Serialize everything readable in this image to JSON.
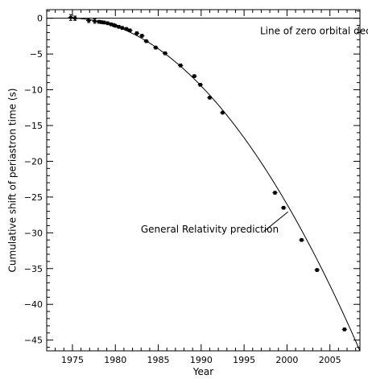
{
  "chart_data": {
    "type": "scatter",
    "xlabel": "Year",
    "ylabel": "Cumulative shift of periastron time (s)",
    "xlim": [
      1972,
      2008.5
    ],
    "ylim": [
      -46.5,
      1.2
    ],
    "x_ticks": [
      1975,
      1980,
      1985,
      1990,
      1995,
      2000,
      2005
    ],
    "y_ticks": [
      0,
      -5,
      -10,
      -15,
      -20,
      -25,
      -30,
      -35,
      -40,
      -45
    ],
    "grid": false,
    "series": [
      {
        "kind": "points",
        "x": [
          1974.8,
          1975.3,
          1976.9,
          1977.6,
          1978.1,
          1978.4,
          1978.7,
          1979.1,
          1979.5,
          1979.8,
          1980.0,
          1980.4,
          1980.8,
          1981.3,
          1981.7,
          1982.5,
          1983.1,
          1983.6,
          1984.7,
          1985.8,
          1987.6,
          1989.2,
          1989.9,
          1991.0,
          1992.5,
          1998.6,
          1999.6,
          2001.7,
          2003.5,
          2006.7
        ],
        "y": [
          0.1,
          0.0,
          -0.3,
          -0.4,
          -0.5,
          -0.55,
          -0.6,
          -0.7,
          -0.85,
          -0.95,
          -1.05,
          -1.2,
          -1.35,
          -1.5,
          -1.7,
          -2.1,
          -2.45,
          -3.2,
          -4.1,
          -4.9,
          -6.6,
          -8.1,
          -9.3,
          -11.1,
          -13.2,
          -24.4,
          -26.5,
          -31.0,
          -35.2,
          -43.5
        ],
        "yerr": [
          0.4,
          0.3,
          0.3,
          0.3,
          0.2,
          0.2,
          0.2,
          0.2,
          0.2,
          0.2,
          0.2,
          0.2,
          0.2,
          0.2,
          0.2,
          0.2,
          0.2,
          0.2,
          0.2,
          0.2,
          0.2,
          0.2,
          0.2,
          0.2,
          0.2,
          0.2,
          0.2,
          0.2,
          0.2,
          0.2
        ]
      },
      {
        "kind": "curve",
        "x_start": 1974.78,
        "x_end": 2008.5,
        "y_at_end": -46.5,
        "shape": "parabola"
      }
    ],
    "reference_line": {
      "y": 0
    },
    "annotations": [
      {
        "text": "Line of zero orbital decay",
        "target": "reference_line",
        "x": 2004.0,
        "y": -1.8
      },
      {
        "text": "General Relativity prediction",
        "target": "curve",
        "x": 1991.0,
        "y": -29.5
      }
    ]
  }
}
